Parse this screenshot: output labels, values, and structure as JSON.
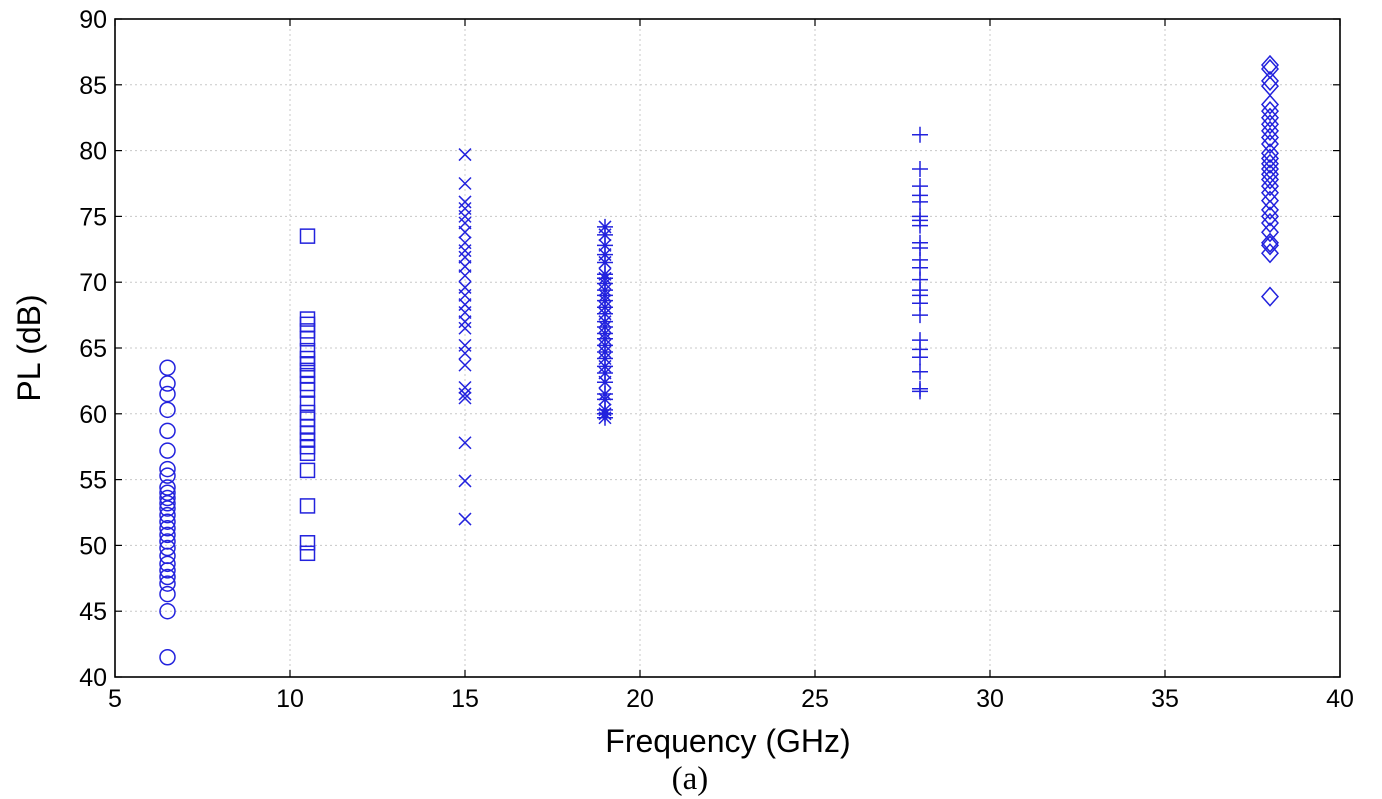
{
  "chart_data": {
    "type": "scatter",
    "title": "",
    "caption": "(a)",
    "xlabel": "Frequency (GHz)",
    "ylabel": "PL (dB)",
    "xlim": [
      5,
      40
    ],
    "ylim": [
      40,
      90
    ],
    "xticks": [
      5,
      10,
      15,
      20,
      25,
      30,
      35,
      40
    ],
    "yticks": [
      40,
      45,
      50,
      55,
      60,
      65,
      70,
      75,
      80,
      85,
      90
    ],
    "grid": true,
    "legend": "none",
    "marker_color": "#2222dd",
    "series": [
      {
        "marker": "circle",
        "x": 6.5,
        "values": [
          63.5,
          62.3,
          61.5,
          60.3,
          58.7,
          57.2,
          55.8,
          55.3,
          54.4,
          54.0,
          53.6,
          53.2,
          52.8,
          52.3,
          51.8,
          51.3,
          50.8,
          50.3,
          49.8,
          49.2,
          48.6,
          48.1,
          47.6,
          47.1,
          46.3,
          45.0,
          41.5
        ]
      },
      {
        "marker": "square",
        "x": 10.5,
        "values": [
          73.5,
          67.2,
          66.8,
          66.3,
          65.7,
          64.8,
          64.2,
          63.8,
          63.3,
          62.9,
          62.3,
          61.8,
          60.8,
          60.1,
          59.6,
          59.0,
          58.5,
          58.0,
          57.5,
          57.0,
          55.7,
          53.0,
          50.2,
          49.4
        ]
      },
      {
        "marker": "x",
        "x": 15,
        "values": [
          79.7,
          77.5,
          76.1,
          75.6,
          75.0,
          74.5,
          73.8,
          73.0,
          72.4,
          71.9,
          71.2,
          70.5,
          69.6,
          69.0,
          68.3,
          67.7,
          67.0,
          66.5,
          65.2,
          64.6,
          63.7,
          62.0,
          61.5,
          61.2,
          57.8,
          54.9,
          52.0
        ]
      },
      {
        "marker": "asterisk",
        "x": 19,
        "values": [
          74.2,
          73.6,
          72.8,
          72.1,
          71.5,
          70.6,
          70.3,
          69.9,
          69.4,
          69.0,
          68.6,
          68.1,
          67.6,
          67.0,
          66.6,
          66.1,
          65.7,
          65.2,
          64.7,
          64.2,
          63.6,
          63.1,
          62.4,
          61.5,
          61.1,
          60.3,
          60.0,
          59.7
        ]
      },
      {
        "marker": "plus",
        "x": 28,
        "values": [
          81.2,
          78.6,
          77.3,
          76.6,
          76.1,
          75.0,
          74.7,
          74.3,
          73.0,
          72.6,
          71.7,
          71.1,
          70.2,
          69.4,
          69.0,
          68.4,
          67.5,
          65.6,
          64.9,
          64.3,
          63.2,
          61.9,
          61.7
        ]
      },
      {
        "marker": "diamond",
        "x": 38,
        "values": [
          86.5,
          86.2,
          85.3,
          84.9,
          83.5,
          83.0,
          82.5,
          82.0,
          81.5,
          81.0,
          80.5,
          79.8,
          79.4,
          79.0,
          78.6,
          78.2,
          77.8,
          77.3,
          76.8,
          76.2,
          75.5,
          75.0,
          74.5,
          73.8,
          73.0,
          72.8,
          72.2,
          68.9
        ]
      }
    ]
  }
}
